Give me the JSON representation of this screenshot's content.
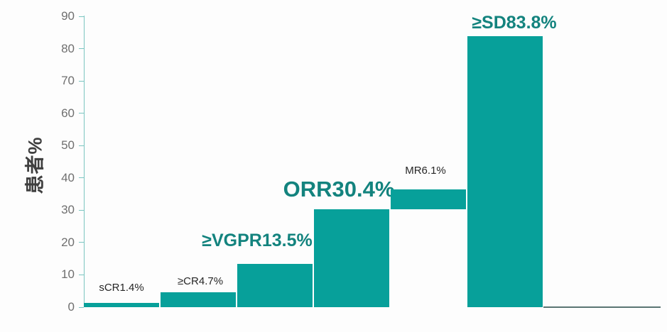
{
  "chart_data": {
    "type": "bar",
    "title": "",
    "xlabel": "",
    "ylabel": "患者%",
    "ylim": [
      0,
      90
    ],
    "yticks": [
      0,
      10,
      20,
      30,
      40,
      50,
      60,
      70,
      80,
      90
    ],
    "grid": false,
    "legend": "none",
    "bars": [
      {
        "name": "sCR",
        "label": "sCR1.4%",
        "value": 1.4,
        "start": 0,
        "end": 1.4,
        "emphasis": false
      },
      {
        "name": "CR",
        "label": "≥CR4.7%",
        "value": 4.7,
        "start": 0,
        "end": 4.7,
        "emphasis": false
      },
      {
        "name": "VGPR",
        "label": "≥VGPR13.5%",
        "value": 13.5,
        "start": 0,
        "end": 13.5,
        "emphasis": true
      },
      {
        "name": "ORR",
        "label": "ORR30.4%",
        "value": 30.4,
        "start": 0,
        "end": 30.4,
        "emphasis": true
      },
      {
        "name": "MR",
        "label": "MR6.1%",
        "value": 6.1,
        "start": 30.4,
        "end": 36.5,
        "emphasis": false
      },
      {
        "name": "SD",
        "label": "≥SD83.8%",
        "value": 83.8,
        "start": 0,
        "end": 83.8,
        "emphasis": true
      }
    ],
    "colors": {
      "bar": "#07A09A",
      "emphasis_text": "#13837E",
      "plain_text": "#262626",
      "tick_text": "#6F6F6F",
      "axis_line": "#7CC5C1",
      "baseline_extension": "#5A7573",
      "ylabel_text": "#3F3F3F"
    }
  }
}
